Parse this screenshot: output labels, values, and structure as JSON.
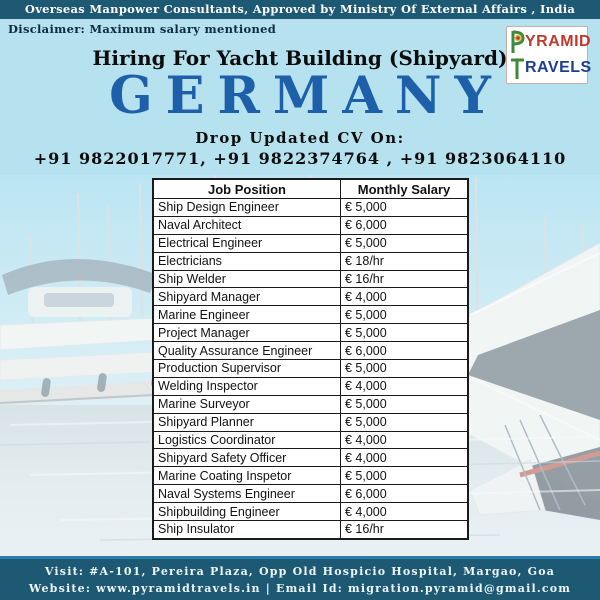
{
  "top_bar": {
    "text": "Overseas Manpower Consultants, Approved by Ministry Of External Affairs , India"
  },
  "disclaimer": {
    "text": "Disclaimer: Maximum salary mentioned"
  },
  "logo": {
    "name_line1": "YRAMID",
    "name_line2": "RAVELS"
  },
  "heading": {
    "title": "Hiring For Yacht Building (Shipyard)",
    "country": "GERMANY"
  },
  "cv": {
    "label": "Drop Updated CV On:",
    "phones": "+91 9822017771, +91 9822374764 , +91 9823064110"
  },
  "salary_table": {
    "headers": [
      "Job Position",
      "Monthly Salary"
    ],
    "rows": [
      {
        "position": "Ship Design Engineer",
        "salary": "€ 5,000"
      },
      {
        "position": "Naval Architect",
        "salary": "€ 6,000"
      },
      {
        "position": "Electrical Engineer",
        "salary": "€ 5,000"
      },
      {
        "position": "Electricians",
        "salary": "€ 18/hr"
      },
      {
        "position": "Ship Welder",
        "salary": "€ 16/hr"
      },
      {
        "position": "Shipyard Manager",
        "salary": "€ 4,000"
      },
      {
        "position": "Marine Engineer",
        "salary": "€ 5,000"
      },
      {
        "position": "Project Manager",
        "salary": "€ 5,000"
      },
      {
        "position": "Quality Assurance Engineer",
        "salary": "€ 6,000"
      },
      {
        "position": "Production Supervisor",
        "salary": "€ 5,000"
      },
      {
        "position": "Welding Inspector",
        "salary": "€ 4,000"
      },
      {
        "position": "Marine Surveyor",
        "salary": "€ 5,000"
      },
      {
        "position": "Shipyard Planner",
        "salary": "€ 5,000"
      },
      {
        "position": "Logistics Coordinator",
        "salary": "€ 4,000"
      },
      {
        "position": "Shipyard Safety Officer",
        "salary": "€ 4,000"
      },
      {
        "position": "Marine Coating Inspetor",
        "salary": "€ 5,000"
      },
      {
        "position": "Naval Systems Engineer",
        "salary": "€ 6,000"
      },
      {
        "position": "Shipbuilding Engineer",
        "salary": "€ 4,000"
      },
      {
        "position": "Ship Insulator",
        "salary": "€ 16/hr"
      }
    ]
  },
  "footer": {
    "line1": "Visit: #A-101, Pereira Plaza, Opp Old Hospicio Hospital, Margao, Goa",
    "line2": "Website: www.pyramidtravels.in | Email Id: migration.pyramid@gmail.com"
  },
  "colors": {
    "bar_teal": "#1d5972",
    "page_blue": "#b5e2ee",
    "country_blue": "#1d5fa9",
    "footer_border_blue": "#2e7ca8",
    "logo_red": "#c0392d",
    "logo_blue": "#1e3e8f",
    "logo_green": "#3e8a3a"
  }
}
